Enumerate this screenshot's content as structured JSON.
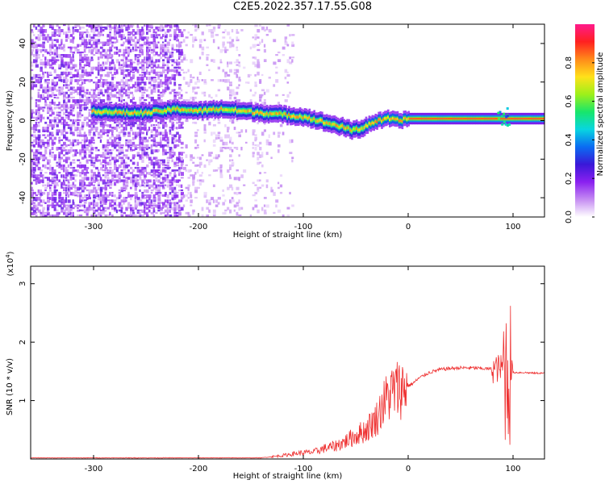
{
  "title": "C2E5.2022.357.17.55.G08",
  "chart_data": [
    {
      "type": "heatmap",
      "xlabel": "Height of straight line (km)",
      "ylabel": "Frequency (Hz)",
      "xlim": [
        -360,
        130
      ],
      "ylim": [
        -50,
        50
      ],
      "xticks": [
        -300,
        -200,
        -100,
        0,
        100
      ],
      "yticks": [
        -40,
        -20,
        0,
        20,
        40
      ],
      "colorbar": {
        "label": "Normalized spectral amplitude",
        "range": [
          0.0,
          1.0
        ],
        "ticks": [
          0.0,
          0.2,
          0.4,
          0.6,
          0.8
        ],
        "tick_labels": [
          "0.0",
          "0.2",
          "0.4",
          "0.6",
          "0.8"
        ],
        "colors": [
          "#ffffff",
          "#c58cf2",
          "#8a20f0",
          "#3a18d8",
          "#0a6cf2",
          "#08d6e0",
          "#18e66a",
          "#9ef01a",
          "#ffe11a",
          "#ff8a1a",
          "#ff2020",
          "#ff1a8c"
        ]
      },
      "ridge": [
        [
          -300,
          5
        ],
        [
          -270,
          4
        ],
        [
          -250,
          4
        ],
        [
          -220,
          6
        ],
        [
          -200,
          5
        ],
        [
          -180,
          6
        ],
        [
          -160,
          5
        ],
        [
          -140,
          4
        ],
        [
          -120,
          3
        ],
        [
          -100,
          2
        ],
        [
          -80,
          -1
        ],
        [
          -65,
          -3
        ],
        [
          -55,
          -5
        ],
        [
          -45,
          -4
        ],
        [
          -35,
          -1
        ],
        [
          -20,
          1
        ],
        [
          -10,
          0
        ],
        [
          0,
          1
        ],
        [
          20,
          1
        ],
        [
          40,
          1
        ],
        [
          60,
          1
        ],
        [
          80,
          1
        ],
        [
          100,
          1
        ],
        [
          130,
          1
        ]
      ]
    },
    {
      "type": "line",
      "xlabel": "Height of straight line (km)",
      "ylabel": "SNR (10 * v/v)",
      "yscale_label_main": "(x10",
      "yscale_label_exp": "4",
      "yscale_label_close": ")",
      "xlim": [
        -360,
        130
      ],
      "ylim": [
        0,
        3.3
      ],
      "xticks": [
        -300,
        -200,
        -100,
        0,
        100
      ],
      "yticks": [
        1,
        2,
        3
      ],
      "color": "#ee3030",
      "envelope": [
        [
          -360,
          0.02
        ],
        [
          -140,
          0.02
        ],
        [
          -120,
          0.06
        ],
        [
          -105,
          0.1
        ],
        [
          -90,
          0.12
        ],
        [
          -80,
          0.18
        ],
        [
          -70,
          0.22
        ],
        [
          -60,
          0.3
        ],
        [
          -50,
          0.4
        ],
        [
          -40,
          0.5
        ],
        [
          -30,
          0.7
        ],
        [
          -25,
          0.9
        ],
        [
          -20,
          1.05
        ],
        [
          -15,
          1.15
        ],
        [
          -10,
          1.2
        ],
        [
          -5,
          1.22
        ],
        [
          0,
          1.25
        ],
        [
          5,
          1.3
        ],
        [
          10,
          1.38
        ],
        [
          20,
          1.48
        ],
        [
          30,
          1.53
        ],
        [
          40,
          1.55
        ],
        [
          50,
          1.56
        ],
        [
          60,
          1.56
        ],
        [
          70,
          1.55
        ],
        [
          80,
          1.54
        ],
        [
          85,
          1.55
        ],
        [
          90,
          1.55
        ],
        [
          95,
          1.5
        ],
        [
          100,
          1.48
        ],
        [
          110,
          1.48
        ],
        [
          120,
          1.47
        ],
        [
          130,
          1.47
        ]
      ]
    }
  ]
}
